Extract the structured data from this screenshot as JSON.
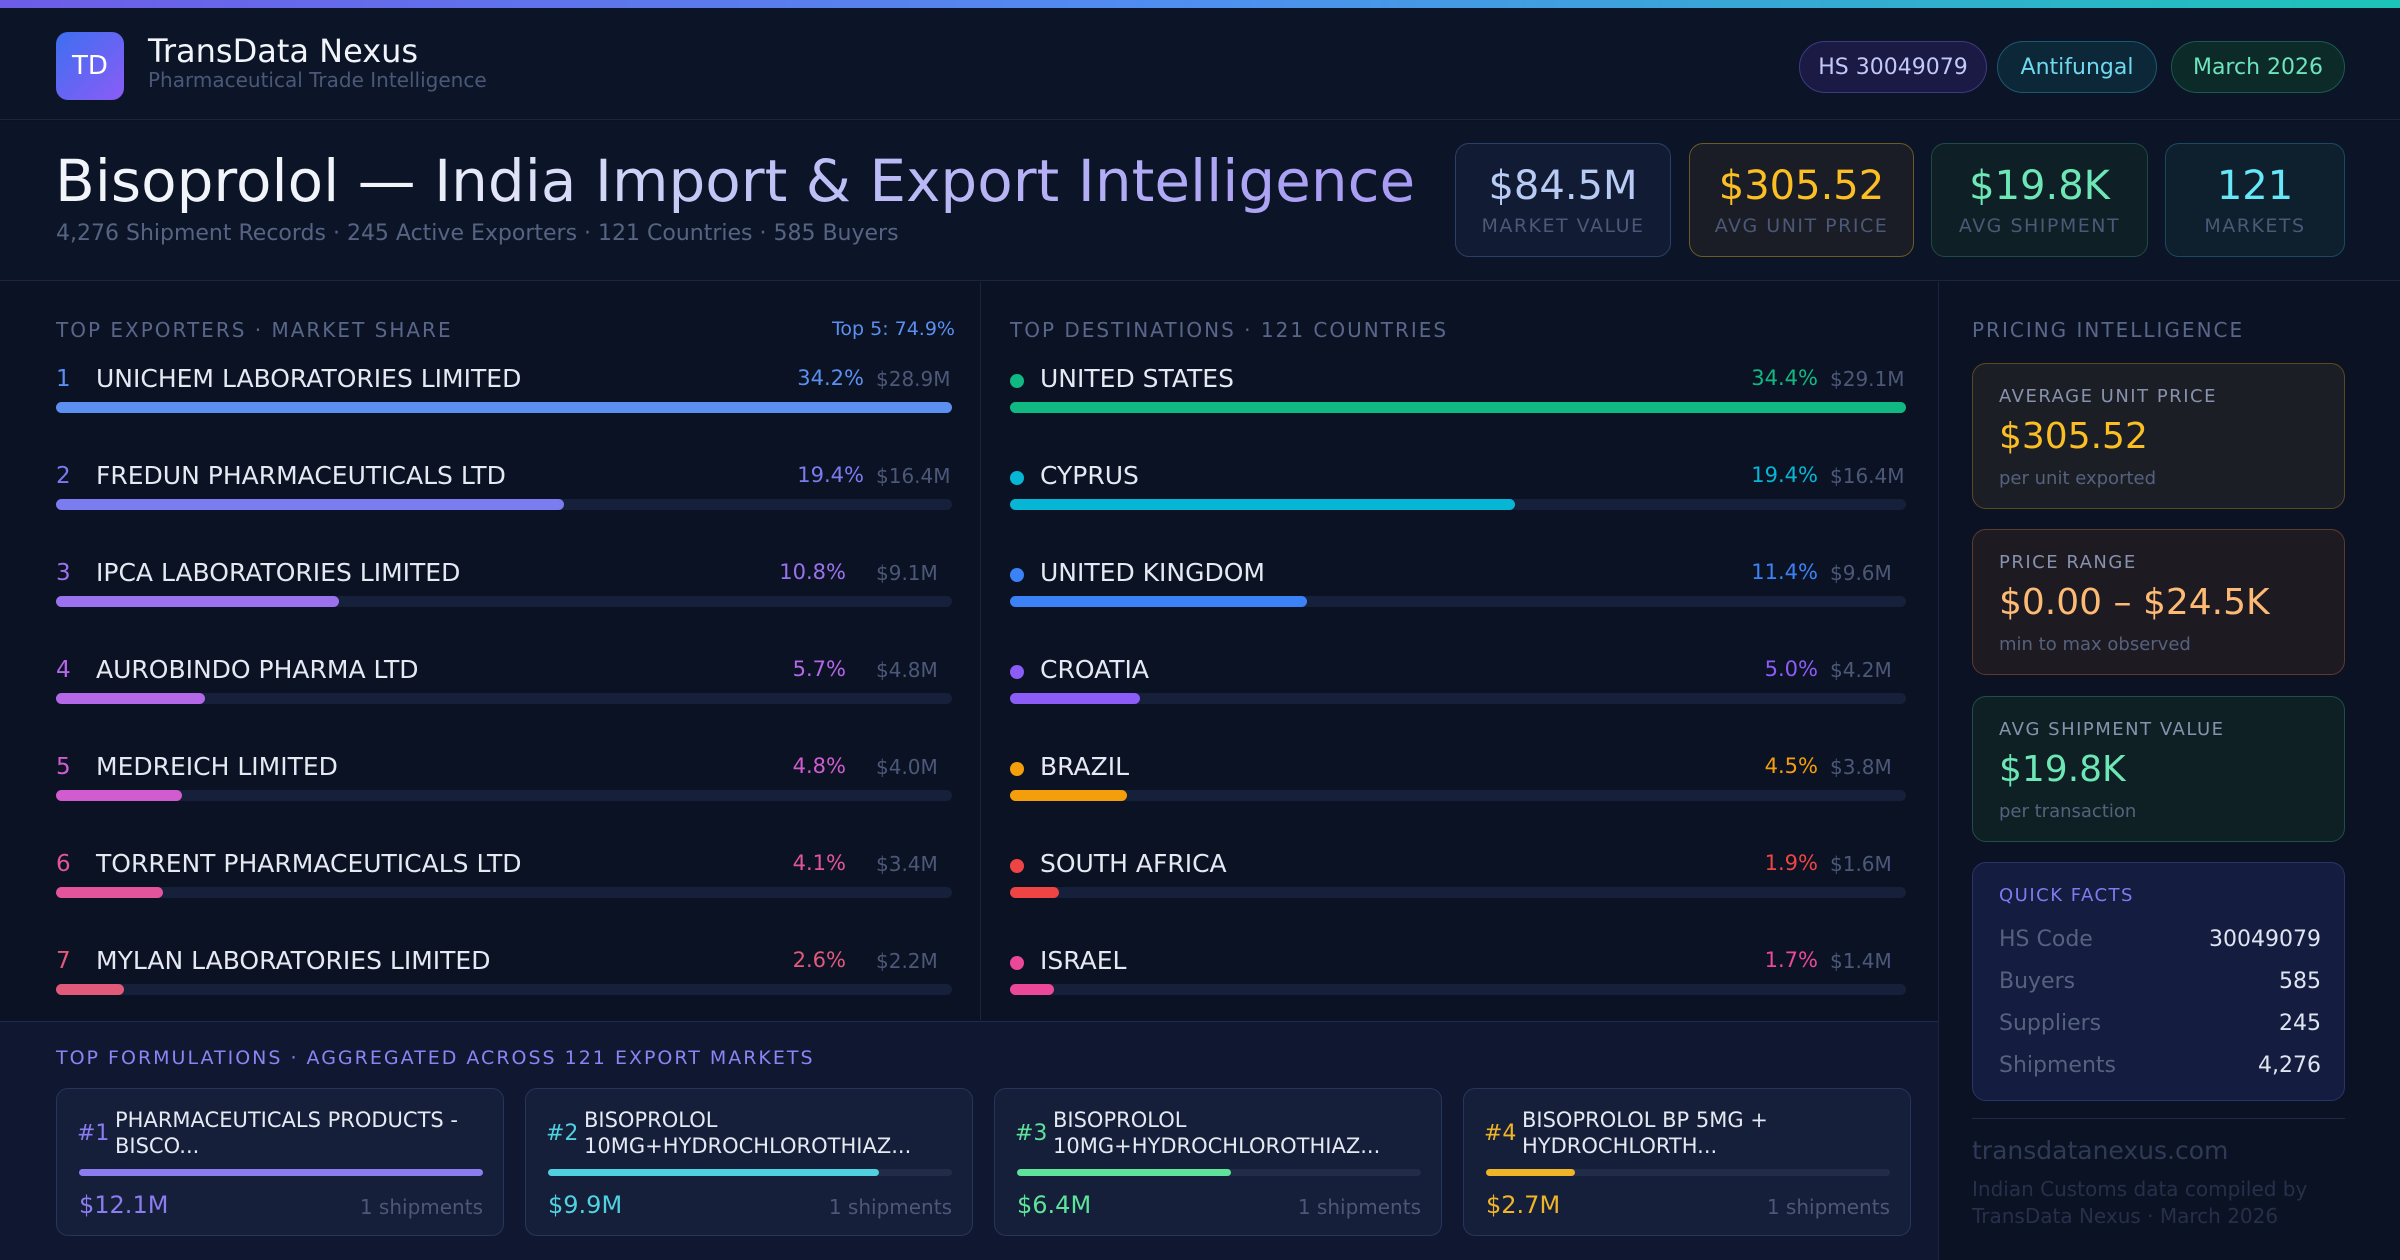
{
  "brand": {
    "logo_text": "TD",
    "name": "TransData Nexus",
    "tagline": "Pharmaceutical Trade Intelligence"
  },
  "pills": {
    "hs_code": "HS 30049079",
    "category": "Antifungal",
    "period": "March 2026"
  },
  "hero": {
    "title": "Bisoprolol — India Import & Export Intelligence",
    "subtitle": "4,276 Shipment Records · 245 Active Exporters · 121 Countries · 585 Buyers"
  },
  "kpis": [
    {
      "value": "$84.5M",
      "label": "MARKET VALUE"
    },
    {
      "value": "$305.52",
      "label": "AVG UNIT PRICE"
    },
    {
      "value": "$19.8K",
      "label": "AVG SHIPMENT"
    },
    {
      "value": "121",
      "label": "MARKETS"
    }
  ],
  "exporters": {
    "title": "TOP EXPORTERS · MARKET SHARE",
    "top_summary": "Top 5: 74.9%",
    "items": [
      {
        "rank": "1",
        "name": "UNICHEM LABORATORIES LIMITED",
        "pct": "34.2%",
        "value": "$28.9M",
        "share": 34.2,
        "color": "#5b8ff0"
      },
      {
        "rank": "2",
        "name": "FREDUN PHARMACEUTICALS LTD",
        "pct": "19.4%",
        "value": "$16.4M",
        "share": 19.4,
        "color": "#7b7cf0"
      },
      {
        "rank": "3",
        "name": "IPCA LABORATORIES LIMITED",
        "pct": "10.8%",
        "value": "$9.1M",
        "share": 10.8,
        "color": "#9b72ee"
      },
      {
        "rank": "4",
        "name": "AUROBINDO PHARMA LTD",
        "pct": "5.7%",
        "value": "$4.8M",
        "share": 5.7,
        "color": "#b467e6"
      },
      {
        "rank": "5",
        "name": "MEDREICH LIMITED",
        "pct": "4.8%",
        "value": "$4.0M",
        "share": 4.8,
        "color": "#d05ccf"
      },
      {
        "rank": "6",
        "name": "TORRENT PHARMACEUTICALS LTD",
        "pct": "4.1%",
        "value": "$3.4M",
        "share": 4.1,
        "color": "#e2559c"
      },
      {
        "rank": "7",
        "name": "MYLAN LABORATORIES LIMITED",
        "pct": "2.6%",
        "value": "$2.2M",
        "share": 2.6,
        "color": "#e25a7a"
      }
    ]
  },
  "destinations": {
    "title": "TOP DESTINATIONS · 121 COUNTRIES",
    "items": [
      {
        "name": "UNITED STATES",
        "pct": "34.4%",
        "value": "$29.1M",
        "share": 34.4,
        "color": "#10b981"
      },
      {
        "name": "CYPRUS",
        "pct": "19.4%",
        "value": "$16.4M",
        "share": 19.4,
        "color": "#06b6d4"
      },
      {
        "name": "UNITED KINGDOM",
        "pct": "11.4%",
        "value": "$9.6M",
        "share": 11.4,
        "color": "#3b82f6"
      },
      {
        "name": "CROATIA",
        "pct": "5.0%",
        "value": "$4.2M",
        "share": 5.0,
        "color": "#8b5cf6"
      },
      {
        "name": "BRAZIL",
        "pct": "4.5%",
        "value": "$3.8M",
        "share": 4.5,
        "color": "#f59e0b"
      },
      {
        "name": "SOUTH AFRICA",
        "pct": "1.9%",
        "value": "$1.6M",
        "share": 1.9,
        "color": "#ef4444"
      },
      {
        "name": "ISRAEL",
        "pct": "1.7%",
        "value": "$1.4M",
        "share": 1.7,
        "color": "#ec4899"
      }
    ]
  },
  "formulations": {
    "title": "TOP FORMULATIONS · AGGREGATED ACROSS 121 EXPORT MARKETS",
    "items": [
      {
        "num": "#1",
        "name": "PHARMACEUTICALS PRODUCTS - BISCO...",
        "value": "$12.1M",
        "shipments": "1 shipments",
        "share": 1.0,
        "color": "#8b7cf0"
      },
      {
        "num": "#2",
        "name": "BISOPROLOL 10MG+HYDROCHLOROTHIAZ...",
        "value": "$9.9M",
        "shipments": "1 shipments",
        "share": 0.82,
        "color": "#4fd1e0"
      },
      {
        "num": "#3",
        "name": "BISOPROLOL 10MG+HYDROCHLOROTHIAZ...",
        "value": "$6.4M",
        "shipments": "1 shipments",
        "share": 0.53,
        "color": "#5ee39a"
      },
      {
        "num": "#4",
        "name": "BISOPROLOL BP 5MG + HYDROCHLORTH...",
        "value": "$2.7M",
        "shipments": "1 shipments",
        "share": 0.22,
        "color": "#f0b429"
      }
    ]
  },
  "pricing": {
    "title": "PRICING INTELLIGENCE",
    "cards": [
      {
        "label": "AVERAGE UNIT PRICE",
        "value": "$305.52",
        "sub": "per unit exported"
      },
      {
        "label": "PRICE RANGE",
        "value": "$0.00 – $24.5K",
        "sub": "min to max observed"
      },
      {
        "label": "AVG SHIPMENT VALUE",
        "value": "$19.8K",
        "sub": "per transaction"
      }
    ]
  },
  "quick_facts": {
    "title": "QUICK FACTS",
    "rows": [
      {
        "key": "HS Code",
        "value": "30049079"
      },
      {
        "key": "Buyers",
        "value": "585"
      },
      {
        "key": "Suppliers",
        "value": "245"
      },
      {
        "key": "Shipments",
        "value": "4,276"
      }
    ]
  },
  "footer": {
    "site": "transdatanexus.com",
    "note": "Indian Customs data compiled by TransData Nexus · March 2026"
  }
}
